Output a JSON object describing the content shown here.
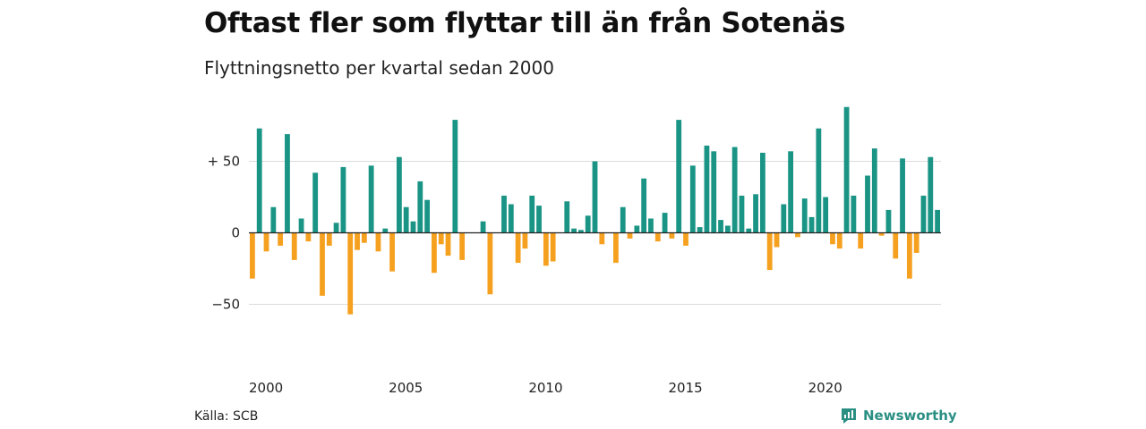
{
  "header": {
    "title": "Oftast fler som flyttar till än från Sotenäs",
    "subtitle": "Flyttningsnetto per kvartal sedan 2000"
  },
  "footer": {
    "source": "Källa: SCB",
    "brand": "Newsworthy",
    "brand_icon": "chart-logo-icon"
  },
  "colors": {
    "positive": "#1a9485",
    "negative": "#f5a11f",
    "grid": "#dcdcdc",
    "zero": "#222222",
    "brand": "#2a8f83"
  },
  "chart_data": {
    "type": "bar",
    "title": "Oftast fler som flyttar till än från Sotenäs",
    "subtitle": "Flyttningsnetto per kvartal sedan 2000",
    "xlabel": "",
    "ylabel": "",
    "x_start": "2000 Q1",
    "x_frequency": "quarterly",
    "x_ticks": [
      {
        "value": 2000,
        "label": "2000"
      },
      {
        "value": 2005,
        "label": "2005"
      },
      {
        "value": 2010,
        "label": "2010"
      },
      {
        "value": 2015,
        "label": "2015"
      },
      {
        "value": 2020,
        "label": "2020"
      }
    ],
    "y_ticks": [
      {
        "value": 50,
        "label": "+ 50"
      },
      {
        "value": 0,
        "label": "0"
      },
      {
        "value": -50,
        "label": "−50"
      }
    ],
    "ylim": [
      -60,
      90
    ],
    "grid": true,
    "values": [
      -32,
      73,
      -13,
      18,
      -9,
      69,
      -19,
      10,
      -6,
      42,
      -44,
      -9,
      7,
      46,
      -57,
      -12,
      -7,
      47,
      -13,
      3,
      -27,
      53,
      18,
      8,
      36,
      23,
      -28,
      -8,
      -16,
      79,
      -19,
      0,
      0,
      8,
      -43,
      0,
      26,
      20,
      -21,
      -11,
      26,
      19,
      -23,
      -20,
      0,
      22,
      3,
      2,
      12,
      50,
      -8,
      0,
      -21,
      18,
      -4,
      5,
      38,
      10,
      -6,
      14,
      -4,
      79,
      -9,
      47,
      4,
      61,
      57,
      9,
      5,
      60,
      26,
      3,
      27,
      56,
      -26,
      -10,
      20,
      57,
      -3,
      24,
      11,
      73,
      25,
      -8,
      -11,
      88,
      26,
      -11,
      40,
      59,
      -2,
      16,
      -18,
      52,
      -32,
      -14,
      26,
      53,
      16
    ]
  }
}
